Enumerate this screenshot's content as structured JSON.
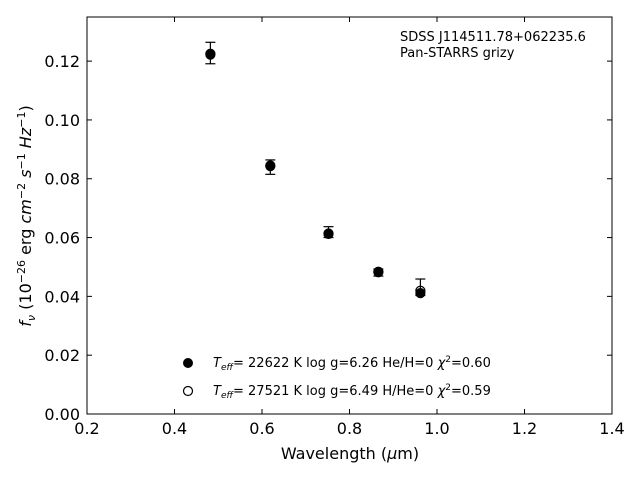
{
  "chart_data": {
    "type": "scatter",
    "xlabel_parts": [
      "Wavelength (",
      "μ",
      "m)"
    ],
    "ylabel_parts": {
      "f": "f",
      "fsub": "ν",
      "open": " (10",
      "exp1": "−26",
      "erg": " erg ",
      "cm": "cm",
      "exp2": "−2",
      "s": " s",
      "exp3": "−1",
      "hz": " Hz",
      "exp4": "−1",
      "close": ")"
    },
    "xlim": [
      0.2,
      1.4
    ],
    "ylim": [
      0.0,
      0.135
    ],
    "xticks": [
      0.2,
      0.4,
      0.6,
      0.8,
      1.0,
      1.2,
      1.4
    ],
    "xtick_labels": [
      "0.2",
      "0.4",
      "0.6",
      "0.8",
      "1.0",
      "1.2",
      "1.4"
    ],
    "yticks": [
      0.0,
      0.02,
      0.04,
      0.06,
      0.08,
      0.1,
      0.12
    ],
    "ytick_labels": [
      "0.00",
      "0.02",
      "0.04",
      "0.06",
      "0.08",
      "0.10",
      "0.12"
    ],
    "annotation": [
      "SDSS J114511.78+062235.6",
      "Pan-STARRS grizy"
    ],
    "observed": {
      "x": [
        0.482,
        0.619,
        0.752,
        0.866,
        0.962
      ],
      "y": [
        0.1227,
        0.0841,
        0.0615,
        0.0481,
        0.0416
      ],
      "yerr_low": [
        0.0036,
        0.0026,
        0.0015,
        0.0012,
        0.0013
      ],
      "yerr_high": [
        0.0037,
        0.0023,
        0.0022,
        0.0012,
        0.0043
      ]
    },
    "series": [
      {
        "name": "Teff= 22622 K  log g=6.26  He/H=0  χ2=0.60",
        "legend_parts": {
          "t": "T",
          "sub": "eff",
          "rest": "= 22622 K  log g=6.26  He/H=0  ",
          "chi": "χ",
          "sup": "2",
          "tail": "=0.60"
        },
        "marker": "filled-circle",
        "x": [
          0.482,
          0.619,
          0.752,
          0.866,
          0.962
        ],
        "y": [
          0.1222,
          0.0845,
          0.0612,
          0.0484,
          0.0411
        ]
      },
      {
        "name": "Teff= 27521 K  log g=6.49  H/He=0  χ2=0.59",
        "legend_parts": {
          "t": "T",
          "sub": "eff",
          "rest": "= 27521 K  log g=6.49  H/He=0  ",
          "chi": "χ",
          "sup": "2",
          "tail": "=0.59"
        },
        "marker": "open-circle",
        "x": [
          0.482,
          0.619,
          0.752,
          0.866,
          0.962
        ],
        "y": [
          0.1225,
          0.0843,
          0.0614,
          0.0482,
          0.0419
        ]
      }
    ],
    "colors": {
      "marker": "#000000",
      "axis": "#000000",
      "background": "#ffffff"
    }
  }
}
